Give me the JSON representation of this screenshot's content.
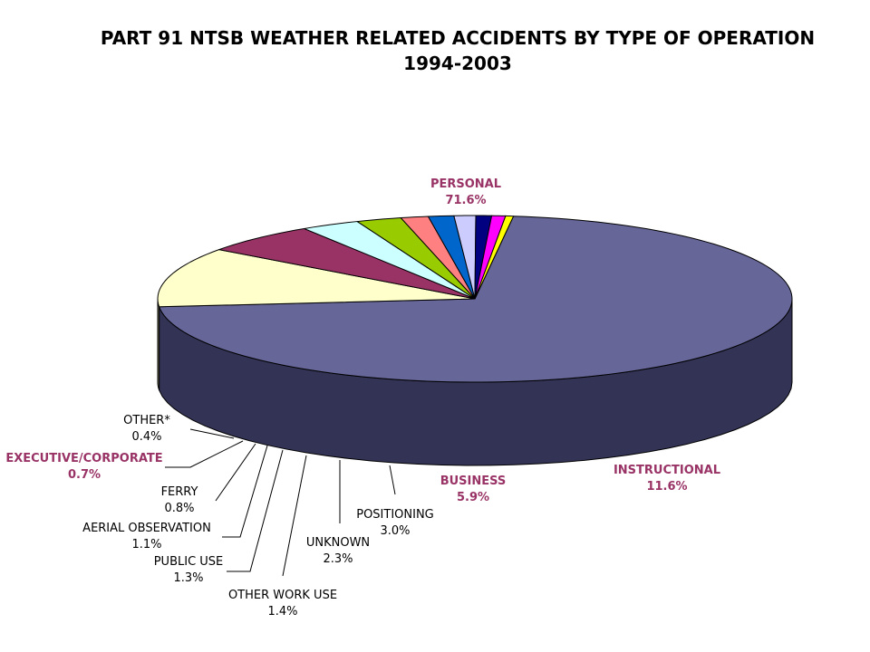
{
  "chart_data": {
    "type": "pie",
    "title": "PART 91 NTSB WEATHER RELATED ACCIDENTS BY TYPE OF OPERATION",
    "subtitle": "1994-2003",
    "slices": [
      {
        "label": "PERSONAL",
        "value": 71.6,
        "value_label": "71.6%",
        "top_color": "#666699",
        "side_color": "#333355",
        "label_color": "#993366",
        "bold": true
      },
      {
        "label": "INSTRUCTIONAL",
        "value": 11.6,
        "value_label": "11.6%",
        "top_color": "#FFFFCC",
        "side_color": "#808066",
        "label_color": "#993366",
        "bold": true
      },
      {
        "label": "BUSINESS",
        "value": 5.9,
        "value_label": "5.9%",
        "top_color": "#993366",
        "side_color": "#4D1933",
        "label_color": "#993366",
        "bold": true
      },
      {
        "label": "POSITIONING",
        "value": 3.0,
        "value_label": "3.0%",
        "top_color": "#CCFFFF",
        "side_color": "#668080",
        "label_color": "#000000",
        "bold": false
      },
      {
        "label": "UNKNOWN",
        "value": 2.3,
        "value_label": "2.3%",
        "top_color": "#99CC00",
        "side_color": "#4D6600",
        "label_color": "#000000",
        "bold": false
      },
      {
        "label": "OTHER WORK USE",
        "value": 1.4,
        "value_label": "1.4%",
        "top_color": "#FF8080",
        "side_color": "#804040",
        "label_color": "#000000",
        "bold": false
      },
      {
        "label": "PUBLIC USE",
        "value": 1.3,
        "value_label": "1.3%",
        "top_color": "#0066CC",
        "side_color": "#003366",
        "label_color": "#000000",
        "bold": false
      },
      {
        "label": "AERIAL OBSERVATION",
        "value": 1.1,
        "value_label": "1.1%",
        "top_color": "#CCCCFF",
        "side_color": "#666680",
        "label_color": "#000000",
        "bold": false
      },
      {
        "label": "FERRY",
        "value": 0.8,
        "value_label": "0.8%",
        "top_color": "#000080",
        "side_color": "#000040",
        "label_color": "#000000",
        "bold": false
      },
      {
        "label": "EXECUTIVE/CORPORATE",
        "value": 0.7,
        "value_label": "0.7%",
        "top_color": "#FF00FF",
        "side_color": "#800080",
        "label_color": "#993366",
        "bold": true
      },
      {
        "label": "OTHER*",
        "value": 0.4,
        "value_label": "0.4%",
        "top_color": "#FFFF00",
        "side_color": "#808000",
        "label_color": "#000000",
        "bold": false
      }
    ],
    "legend": "none"
  }
}
